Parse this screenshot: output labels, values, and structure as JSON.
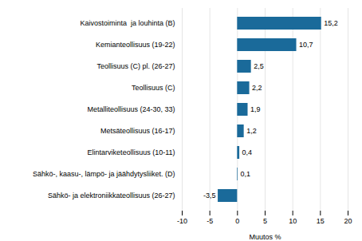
{
  "chart_data": {
    "type": "bar",
    "orientation": "horizontal",
    "xlabel": "Muutos %",
    "categories": [
      "Kaivostoiminta  ja louhinta (B)",
      "Kemianteollisuus (19-22)",
      "Teollisuus (C) pl. (26-27)",
      "Teollisuus (C)",
      "Metalliteollisuus (24-30, 33)",
      "Metsäteollisuus (16-17)",
      "Elintarviketeollisuus (10-11)",
      "Sähkö-, kaasu-, lämpö- ja jäähdytysliiket. (D)",
      "Sähkö- ja elektroniikkateollisuus (26-27)"
    ],
    "values": [
      15.2,
      10.7,
      2.5,
      2.2,
      1.9,
      1.2,
      0.4,
      0.1,
      -3.5
    ],
    "value_labels": [
      "15,2",
      "10,7",
      "2,5",
      "2,2",
      "1,9",
      "1,2",
      "0,4",
      "0,1",
      "-3,5"
    ],
    "data_labels": true,
    "color": "#1a6a9a",
    "xlim": [
      -10,
      20
    ],
    "xticks": [
      -10,
      -5,
      0,
      5,
      10,
      15,
      20
    ],
    "grid": true
  }
}
